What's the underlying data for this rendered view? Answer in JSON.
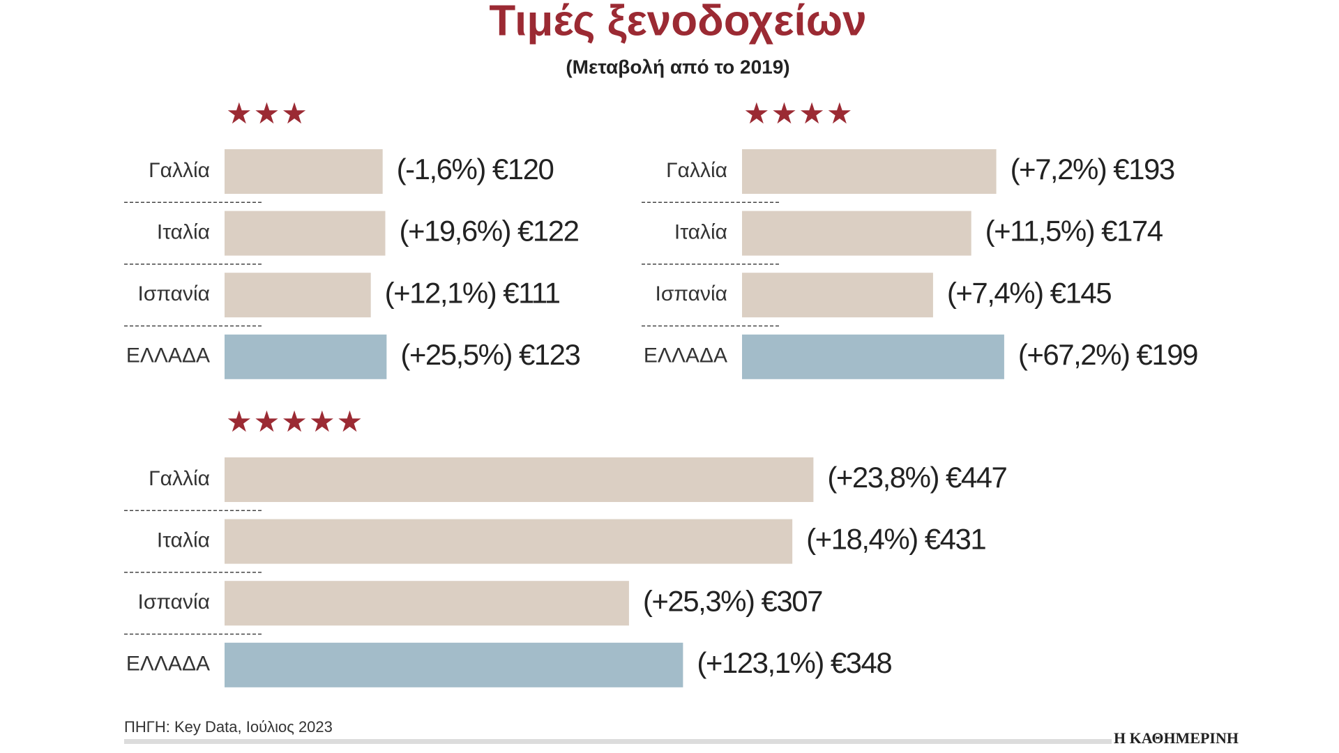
{
  "title": "Τιμές ξενοδοχείων",
  "subtitle": "(Μεταβολή από το 2019)",
  "source": "ΠΗΓΗ: Key Data, Ιούλιος 2023",
  "brand": "Η ΚΑΘΗΜΕΡΙΝΗ",
  "chart_data": [
    {
      "type": "bar",
      "title": "★★★",
      "categories": [
        "Γαλλία",
        "Ιταλία",
        "Ισπανία",
        "ΕΛΛΑΔΑ"
      ],
      "values": [
        120,
        122,
        111,
        123
      ],
      "value_labels": [
        "€120",
        "€122",
        "€111",
        "€123"
      ],
      "changes": [
        -1.6,
        19.6,
        12.1,
        25.5
      ],
      "change_labels": [
        "(-1,6%)",
        "(+19,6%)",
        "(+12,1%)",
        "(+25,5%)"
      ],
      "colors": [
        "#dbcfc3",
        "#dbcfc3",
        "#dbcfc3",
        "#a3bcc9"
      ]
    },
    {
      "type": "bar",
      "title": "★★★★",
      "categories": [
        "Γαλλία",
        "Ιταλία",
        "Ισπανία",
        "ΕΛΛΑΔΑ"
      ],
      "values": [
        193,
        174,
        145,
        199
      ],
      "value_labels": [
        "€193",
        "€174",
        "€145",
        "€199"
      ],
      "changes": [
        7.2,
        11.5,
        7.4,
        67.2
      ],
      "change_labels": [
        "(+7,2%)",
        "(+11,5%)",
        "(+7,4%)",
        "(+67,2%)"
      ],
      "colors": [
        "#dbcfc3",
        "#dbcfc3",
        "#dbcfc3",
        "#a3bcc9"
      ]
    },
    {
      "type": "bar",
      "title": "★★★★★",
      "categories": [
        "Γαλλία",
        "Ιταλία",
        "Ισπανία",
        "ΕΛΛΑΔΑ"
      ],
      "values": [
        447,
        431,
        307,
        348
      ],
      "value_labels": [
        "€447",
        "€431",
        "€307",
        "€348"
      ],
      "changes": [
        23.8,
        18.4,
        25.3,
        123.1
      ],
      "change_labels": [
        "(+23,8%)",
        "(+18,4%)",
        "(+25,3%)",
        "(+123,1%)"
      ],
      "colors": [
        "#dbcfc3",
        "#dbcfc3",
        "#dbcfc3",
        "#a3bcc9"
      ]
    }
  ]
}
